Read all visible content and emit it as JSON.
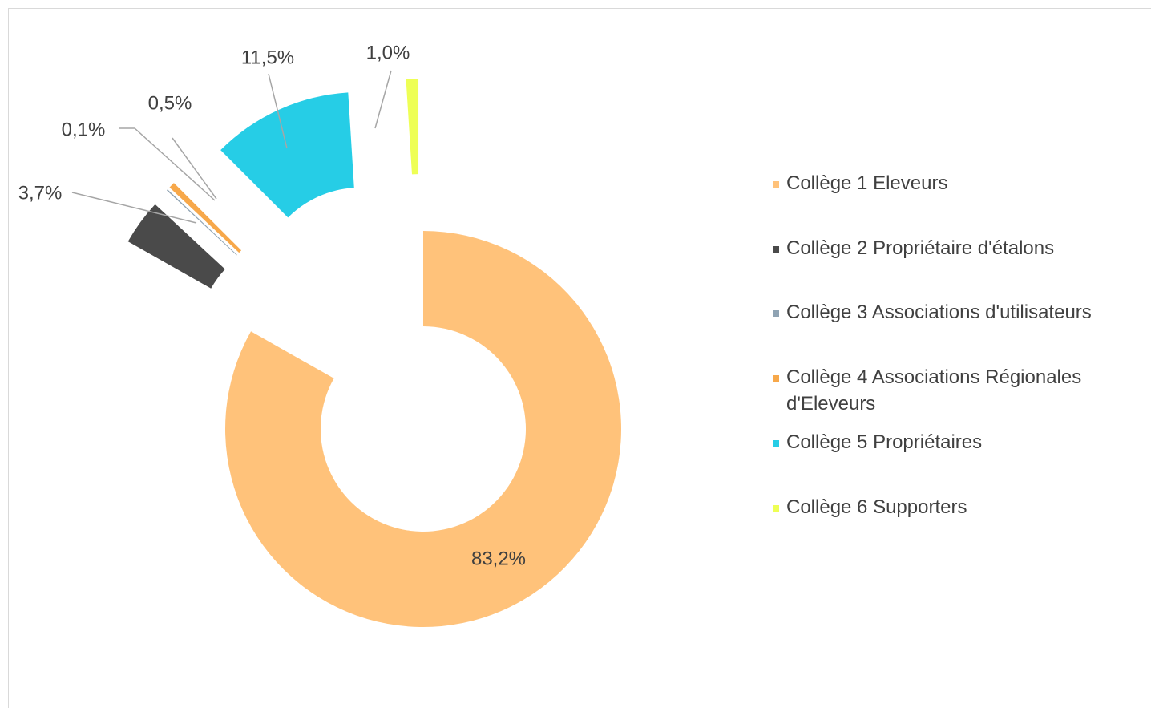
{
  "chart_data": {
    "type": "donut",
    "categories": [
      "Collège 1 Eleveurs",
      "Collège 2 Propriétaire d'étalons",
      "Collège 3 Associations d'utilisateurs",
      "Collège 4 Associations Régionales d'Eleveurs",
      "Collège 5 Propriétaires",
      "Collège 6 Supporters"
    ],
    "values": [
      83.2,
      3.7,
      0.1,
      0.5,
      11.5,
      1.0
    ],
    "value_labels": [
      "83,2%",
      "3,7%",
      "0,1%",
      "0,5%",
      "11,5%",
      "1,0%"
    ],
    "colors": [
      "#ffc27a",
      "#4a4a4a",
      "#8fa3b3",
      "#f7a84a",
      "#26cde6",
      "#eeff55"
    ],
    "legend": "right"
  }
}
